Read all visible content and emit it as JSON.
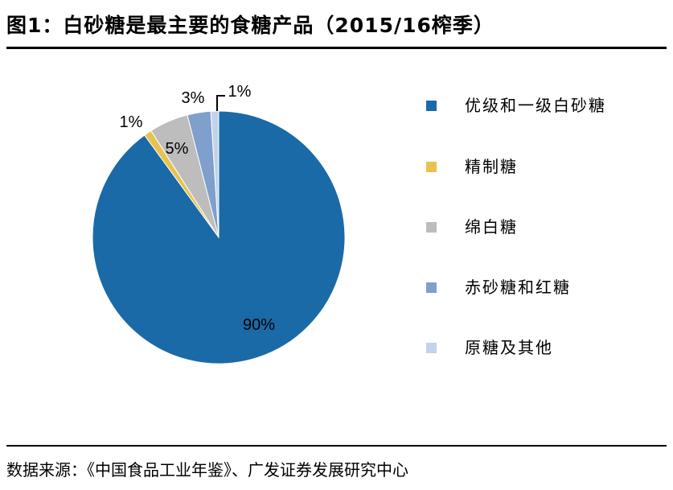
{
  "title": "图1：白砂糖是最主要的食糖产品（2015/16榨季）",
  "source": "数据来源：《中国食品工业年鉴》、广发证券发展研究中心",
  "chart_data": {
    "type": "pie",
    "categories": [
      "优级和一级白砂糖",
      "精制糖",
      "绵白糖",
      "赤砂糖和红糖",
      "原糖及其他"
    ],
    "values": [
      90,
      1,
      5,
      3,
      1
    ],
    "labels": [
      "90%",
      "1%",
      "5%",
      "3%",
      "1%"
    ],
    "colors": [
      "#1a6aa8",
      "#e8c24e",
      "#bdbdbd",
      "#7f9fcc",
      "#c2d3e9"
    ],
    "legend": "right"
  }
}
